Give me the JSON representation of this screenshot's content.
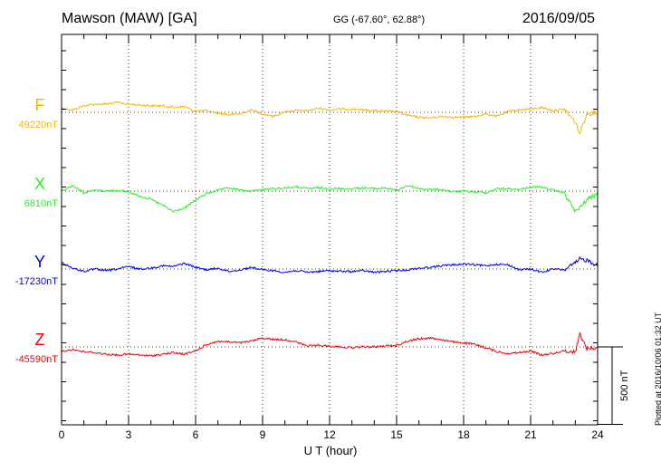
{
  "header": {
    "station": "Mawson (MAW)  [GA]",
    "coords": "GG (-67.60°,  62.88°)",
    "date": "2016/09/05"
  },
  "plotted_note": "Plotted at 2016/10/06 01:32 UT",
  "chart_data": {
    "type": "line",
    "xlabel": "U T (hour)",
    "xlim": [
      0,
      24
    ],
    "x_ticks": [
      "0",
      "3",
      "6",
      "9",
      "12",
      "15",
      "18",
      "21",
      "24"
    ],
    "scale_bar_label": "500 nT",
    "scale_bar_nT": 500,
    "series": [
      {
        "name": "F",
        "baseline_label": "49220nT",
        "baseline_nT": 49220,
        "color": "#f5b400",
        "x": [
          0,
          0.5,
          1,
          1.5,
          2,
          2.5,
          3,
          3.5,
          4,
          4.5,
          5,
          5.5,
          6,
          6.5,
          7,
          7.5,
          8,
          8.5,
          9,
          9.5,
          10,
          10.5,
          11,
          11.5,
          12,
          12.5,
          13,
          13.5,
          14,
          14.5,
          15,
          15.5,
          16,
          16.5,
          17,
          17.5,
          18,
          18.5,
          19,
          19.5,
          20,
          20.5,
          21,
          21.5,
          22,
          22.5,
          23,
          23.2,
          23.5,
          24
        ],
        "y": [
          49270,
          49250,
          49300,
          49320,
          49320,
          49340,
          49320,
          49310,
          49300,
          49300,
          49280,
          49290,
          49230,
          49240,
          49210,
          49190,
          49200,
          49250,
          49200,
          49170,
          49230,
          49240,
          49240,
          49270,
          49250,
          49260,
          49260,
          49250,
          49240,
          49230,
          49230,
          49180,
          49160,
          49150,
          49170,
          49160,
          49160,
          49170,
          49200,
          49170,
          49230,
          49250,
          49260,
          49280,
          49240,
          49260,
          49100,
          48960,
          49200,
          49220
        ]
      },
      {
        "name": "X",
        "baseline_label": "6810nT",
        "baseline_nT": 6810,
        "color": "#22ee22",
        "x": [
          0,
          0.5,
          1,
          1.5,
          2,
          2.5,
          3,
          3.5,
          4,
          4.5,
          5,
          5.5,
          6,
          6.5,
          7,
          7.5,
          8,
          8.5,
          9,
          9.5,
          10,
          10.5,
          11,
          11.5,
          12,
          12.5,
          13,
          13.5,
          14,
          14.5,
          15,
          15.5,
          16,
          16.5,
          17,
          17.5,
          18,
          18.5,
          19,
          19.5,
          20,
          20.5,
          21,
          21.5,
          22,
          22.5,
          23,
          23.2,
          23.5,
          24
        ],
        "y": [
          6810,
          6880,
          6790,
          6820,
          6810,
          6820,
          6800,
          6750,
          6710,
          6640,
          6560,
          6600,
          6700,
          6780,
          6820,
          6850,
          6820,
          6810,
          6830,
          6840,
          6850,
          6860,
          6840,
          6850,
          6840,
          6840,
          6840,
          6850,
          6840,
          6850,
          6820,
          6880,
          6840,
          6830,
          6830,
          6800,
          6810,
          6800,
          6790,
          6840,
          6840,
          6830,
          6860,
          6860,
          6820,
          6790,
          6560,
          6600,
          6700,
          6780
        ]
      },
      {
        "name": "Y",
        "baseline_label": "-17230nT",
        "baseline_nT": -17230,
        "color": "#0000dd",
        "x": [
          0,
          0.5,
          1,
          1.5,
          2,
          2.5,
          3,
          3.5,
          4,
          4.5,
          5,
          5.5,
          6,
          6.5,
          7,
          7.5,
          8,
          8.5,
          9,
          9.5,
          10,
          10.5,
          11,
          11.5,
          12,
          12.5,
          13,
          13.5,
          14,
          14.5,
          15,
          15.5,
          16,
          16.5,
          17,
          17.5,
          18,
          18.5,
          19,
          19.5,
          20,
          20.5,
          21,
          21.5,
          22,
          22.5,
          23,
          23.2,
          23.5,
          24
        ],
        "y": [
          -17150,
          -17220,
          -17260,
          -17230,
          -17250,
          -17230,
          -17200,
          -17230,
          -17220,
          -17190,
          -17200,
          -17160,
          -17210,
          -17240,
          -17220,
          -17260,
          -17240,
          -17210,
          -17240,
          -17250,
          -17270,
          -17250,
          -17270,
          -17260,
          -17250,
          -17260,
          -17260,
          -17250,
          -17270,
          -17260,
          -17250,
          -17240,
          -17220,
          -17210,
          -17190,
          -17180,
          -17170,
          -17180,
          -17190,
          -17170,
          -17180,
          -17240,
          -17230,
          -17270,
          -17230,
          -17240,
          -17160,
          -17110,
          -17120,
          -17180
        ]
      },
      {
        "name": "Z",
        "baseline_label": "-45590nT",
        "baseline_nT": -45590,
        "color": "#ee0000",
        "x": [
          0,
          0.5,
          1,
          1.5,
          2,
          2.5,
          3,
          3.5,
          4,
          4.5,
          5,
          5.5,
          6,
          6.5,
          7,
          7.5,
          8,
          8.5,
          9,
          9.5,
          10,
          10.5,
          11,
          11.5,
          12,
          12.5,
          13,
          13.5,
          14,
          14.5,
          15,
          15.5,
          16,
          16.5,
          17,
          17.5,
          18,
          18.5,
          19,
          19.5,
          20,
          20.5,
          21,
          21.5,
          22,
          22.5,
          23,
          23.2,
          23.5,
          24
        ],
        "y": [
          -45650,
          -45620,
          -45650,
          -45660,
          -45680,
          -45690,
          -45680,
          -45690,
          -45700,
          -45680,
          -45660,
          -45680,
          -45640,
          -45560,
          -45520,
          -45530,
          -45540,
          -45520,
          -45480,
          -45500,
          -45500,
          -45530,
          -45580,
          -45570,
          -45580,
          -45590,
          -45600,
          -45590,
          -45590,
          -45580,
          -45570,
          -45520,
          -45490,
          -45480,
          -45500,
          -45530,
          -45540,
          -45560,
          -45600,
          -45650,
          -45670,
          -45660,
          -45640,
          -45690,
          -45670,
          -45640,
          -45650,
          -45430,
          -45610,
          -45600
        ]
      }
    ]
  }
}
